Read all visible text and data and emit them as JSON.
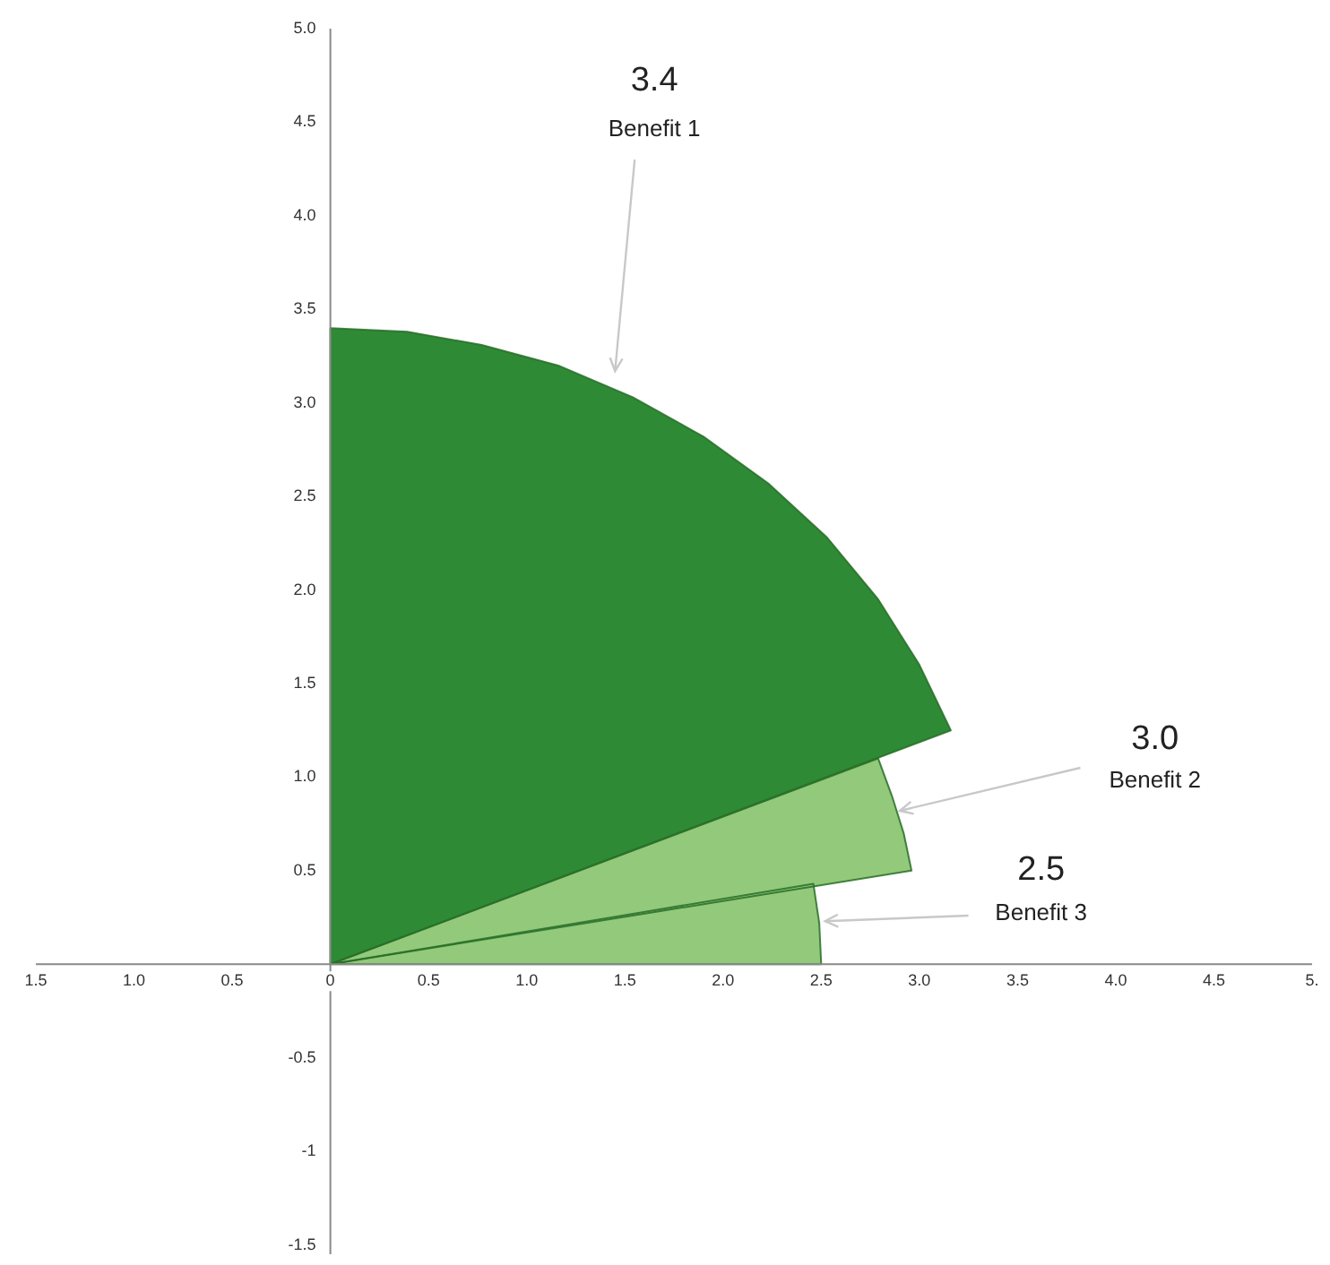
{
  "chart_data": {
    "type": "area",
    "series": [
      {
        "name": "Benefit 1",
        "color": "#2f8a36",
        "x": [
          0,
          3.16,
          3.0,
          2.79,
          2.53,
          2.23,
          1.9,
          1.54,
          1.16,
          0.77,
          0.39,
          0
        ],
        "values": [
          0,
          1.25,
          1.6,
          1.95,
          2.28,
          2.57,
          2.82,
          3.03,
          3.2,
          3.31,
          3.38,
          3.4
        ]
      },
      {
        "name": "Benefit 2",
        "color": "#93c97a",
        "x": [
          0,
          2.96,
          2.92,
          2.86,
          2.79
        ],
        "values": [
          0,
          0.5,
          0.7,
          0.9,
          1.1
        ]
      },
      {
        "name": "Benefit 3",
        "color": "#93c97a",
        "x": [
          0,
          2.5,
          2.49,
          2.46
        ],
        "values": [
          0,
          0,
          0.22,
          0.43
        ]
      }
    ],
    "annotations": [
      "3.4",
      "3.0",
      "2.5"
    ],
    "xlim": [
      -1.5,
      5.0
    ],
    "ylim": [
      -1.55,
      5.0
    ],
    "xticks": [
      {
        "value": -1.5,
        "label": "1.5"
      },
      {
        "value": -1,
        "label": "1.0"
      },
      {
        "value": -0.5,
        "label": "0.5"
      },
      {
        "value": 0,
        "label": "0"
      },
      {
        "value": 0.5,
        "label": "0.5"
      },
      {
        "value": 1,
        "label": "1.0"
      },
      {
        "value": 1.5,
        "label": "1.5"
      },
      {
        "value": 2,
        "label": "2.0"
      },
      {
        "value": 2.5,
        "label": "2.5"
      },
      {
        "value": 3,
        "label": "3.0"
      },
      {
        "value": 3.5,
        "label": "3.5"
      },
      {
        "value": 4,
        "label": "4.0"
      },
      {
        "value": 4.5,
        "label": "4.5"
      },
      {
        "value": 5,
        "label": "5."
      }
    ],
    "yticks": [
      {
        "value": -1.5,
        "label": "-1.5"
      },
      {
        "value": -1,
        "label": "-1"
      },
      {
        "value": -0.5,
        "label": "-0.5"
      },
      {
        "value": 0.5,
        "label": "0.5"
      },
      {
        "value": 1,
        "label": "1.0"
      },
      {
        "value": 1.5,
        "label": "1.5"
      },
      {
        "value": 2,
        "label": "2.0"
      },
      {
        "value": 2.5,
        "label": "2.5"
      },
      {
        "value": 3,
        "label": "3.0"
      },
      {
        "value": 3.5,
        "label": "3.5"
      },
      {
        "value": 4,
        "label": "4.0"
      },
      {
        "value": 4.5,
        "label": "4.5"
      },
      {
        "value": 5,
        "label": "5.0"
      }
    ]
  }
}
